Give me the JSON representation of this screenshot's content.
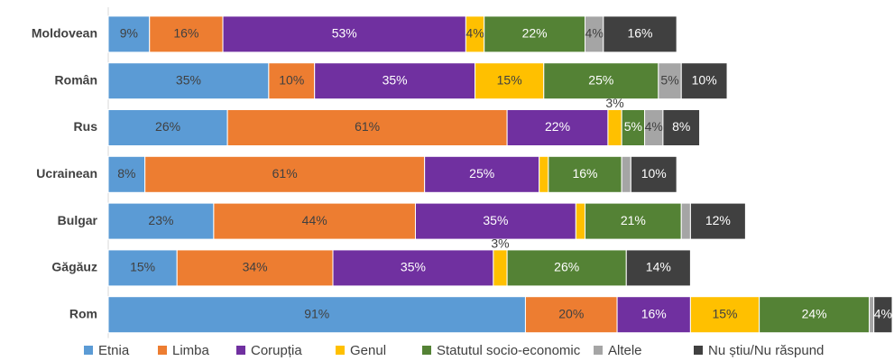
{
  "chart_data": {
    "type": "stacked-bar-horizontal",
    "categories": [
      "Moldovean",
      "Român",
      "Rus",
      "Ucrainean",
      "Bulgar",
      "Găgăuz",
      "Rom"
    ],
    "series": [
      {
        "name": "Etnia",
        "color": "#5b9bd5",
        "values": [
          9,
          35,
          26,
          8,
          23,
          15,
          91
        ],
        "value_labels": [
          "9%",
          "35%",
          "26%",
          "8%",
          "23%",
          "15%",
          "91%"
        ]
      },
      {
        "name": "Limba",
        "color": "#ed7d31",
        "values": [
          16,
          10,
          61,
          61,
          44,
          34,
          20
        ],
        "value_labels": [
          "16%",
          "10%",
          "61%",
          "61%",
          "44%",
          "34%",
          "20%"
        ]
      },
      {
        "name": "Corupția",
        "color": "#7030a0",
        "values": [
          53,
          35,
          22,
          25,
          35,
          35,
          16
        ],
        "value_labels": [
          "53%",
          "35%",
          "22%",
          "25%",
          "35%",
          "35%",
          "16%"
        ]
      },
      {
        "name": "Genul",
        "color": "#ffc000",
        "values": [
          4,
          15,
          3,
          2,
          2,
          3,
          15
        ],
        "value_labels": [
          "4%",
          "15%",
          "3%",
          null,
          null,
          "3%",
          "15%"
        ]
      },
      {
        "name": "Statutul socio-economic",
        "color": "#548235",
        "values": [
          22,
          25,
          5,
          16,
          21,
          26,
          24
        ],
        "value_labels": [
          "22%",
          "25%",
          "5%",
          "16%",
          "21%",
          "26%",
          "24%"
        ]
      },
      {
        "name": "Altele",
        "color": "#a5a5a5",
        "values": [
          4,
          5,
          4,
          2,
          2,
          null,
          1
        ],
        "value_labels": [
          "4%",
          "5%",
          "4%",
          null,
          null,
          null,
          null
        ]
      },
      {
        "name": "Nu știu/Nu răspund",
        "color": "#404040",
        "values": [
          16,
          10,
          8,
          10,
          12,
          14,
          4
        ],
        "value_labels": [
          "16%",
          "10%",
          "8%",
          "10%",
          "12%",
          "14%",
          "4%"
        ]
      }
    ]
  }
}
